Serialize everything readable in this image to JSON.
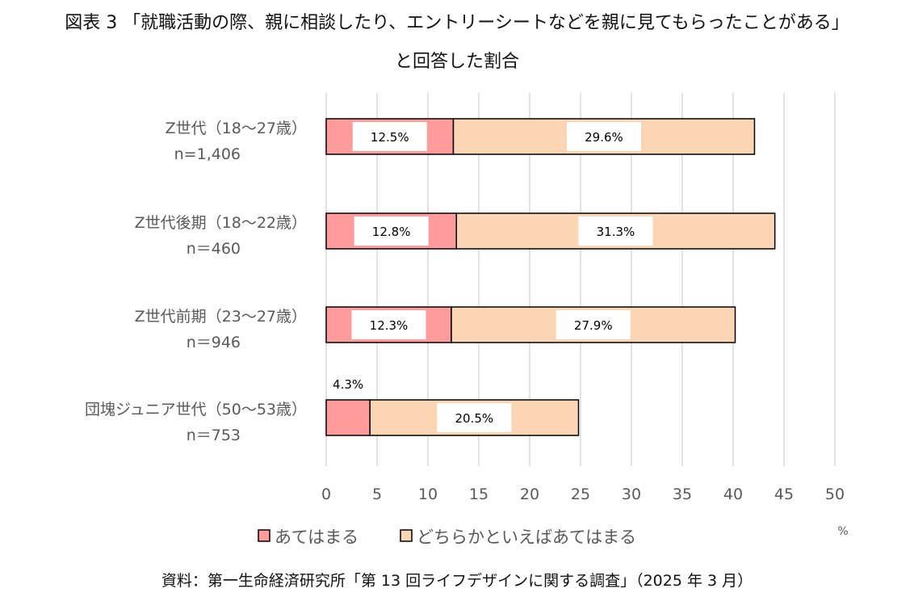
{
  "title_line1": "図表 3 「就職活動の際、親に相談したり、エントリーシートなどを親に見てもらったことがある」",
  "title_line2": "と回答した割合",
  "source": "資料：第一生命経済研究所「第 13 回ライフデザインに関する調査」（2025 年 3 月）",
  "chart_data": {
    "type": "bar",
    "orientation": "horizontal",
    "stacked": true,
    "categories": [
      [
        "Z世代（18～27歳）",
        "n=1,406"
      ],
      [
        "Z世代後期（18～22歳）",
        "n＝460"
      ],
      [
        "Z世代前期（23～27歳）",
        "n＝946"
      ],
      [
        "団塊ジュニア世代（50～53歳）",
        "n＝753"
      ]
    ],
    "series": [
      {
        "name": "あてはまる",
        "values": [
          12.5,
          12.8,
          12.3,
          4.3
        ],
        "labels": [
          "12.5%",
          "12.8%",
          "12.3%",
          "4.3%"
        ],
        "color": "#ff9b9b"
      },
      {
        "name": "どちらかといえばあてはまる",
        "values": [
          29.6,
          31.3,
          27.9,
          20.5
        ],
        "labels": [
          "29.6%",
          "31.3%",
          "27.9%",
          "20.5%"
        ],
        "color": "#fcd5b4"
      }
    ],
    "xlim": [
      0,
      50
    ],
    "xticks": [
      "0",
      "5",
      "10",
      "15",
      "20",
      "25",
      "30",
      "35",
      "40",
      "45",
      "50"
    ],
    "xunit": "%",
    "grid": true,
    "legend_position": "bottom"
  }
}
